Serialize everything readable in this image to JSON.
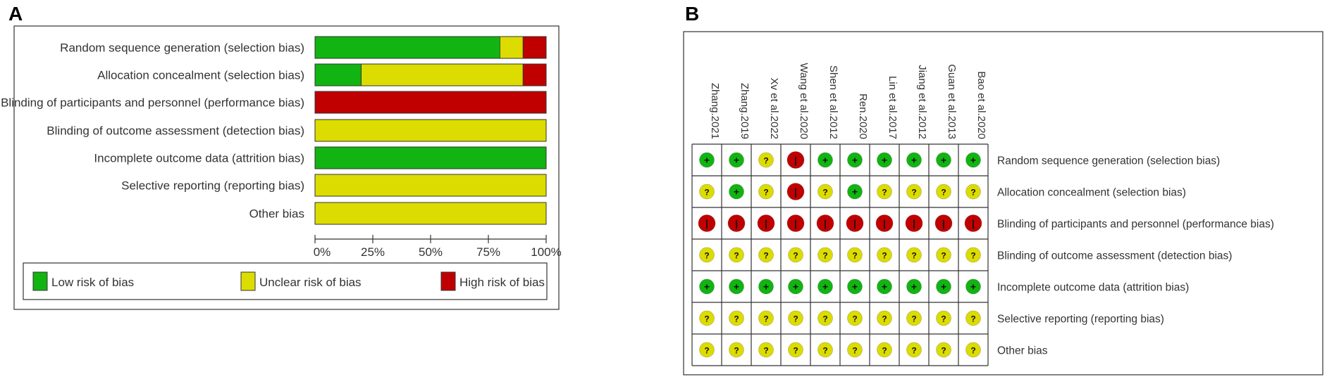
{
  "chart_data": [
    {
      "type": "bar",
      "subtype": "stacked-horizontal-percent",
      "panel": "A",
      "domains": [
        "Random sequence generation (selection bias)",
        "Allocation concealment (selection bias)",
        "Blinding of participants and personnel (performance bias)",
        "Blinding of outcome assessment (detection bias)",
        "Incomplete outcome data (attrition bias)",
        "Selective reporting (reporting bias)",
        "Other bias"
      ],
      "series": [
        {
          "key": "low",
          "name": "Low risk of bias",
          "values": [
            80,
            20,
            0,
            0,
            100,
            0,
            0
          ]
        },
        {
          "key": "unclear",
          "name": "Unclear risk of bias",
          "values": [
            10,
            70,
            0,
            100,
            0,
            100,
            100
          ]
        },
        {
          "key": "high",
          "name": "High risk of bias",
          "values": [
            10,
            10,
            100,
            0,
            0,
            0,
            0
          ]
        }
      ],
      "x_ticks": [
        "0%",
        "25%",
        "50%",
        "75%",
        "100%"
      ],
      "xlim": [
        0,
        100
      ],
      "legend_position": "bottom"
    },
    {
      "type": "table",
      "subtype": "risk-of-bias-summary",
      "panel": "B",
      "studies": [
        "Zhang.2021",
        "Zhang.2019",
        "Xv et al.2022",
        "Wang et al.2020",
        "Shen et al.2012",
        "Ren.2020",
        "Lin et al.2017",
        "Jiang et al.2012",
        "Guan et al.2013",
        "Bao et al.2020"
      ],
      "domains": [
        "Random sequence generation (selection bias)",
        "Allocation concealment (selection bias)",
        "Blinding of participants and personnel (performance bias)",
        "Blinding of outcome assessment (detection bias)",
        "Incomplete outcome data (attrition bias)",
        "Selective reporting (reporting bias)",
        "Other bias"
      ],
      "judgements": [
        [
          "+",
          "+",
          "?",
          "-",
          "+",
          "+",
          "+",
          "+",
          "+",
          "+"
        ],
        [
          "?",
          "+",
          "?",
          "-",
          "?",
          "+",
          "?",
          "?",
          "?",
          "?"
        ],
        [
          "-",
          "-",
          "-",
          "-",
          "-",
          "-",
          "-",
          "-",
          "-",
          "-"
        ],
        [
          "?",
          "?",
          "?",
          "?",
          "?",
          "?",
          "?",
          "?",
          "?",
          "?"
        ],
        [
          "+",
          "+",
          "+",
          "+",
          "+",
          "+",
          "+",
          "+",
          "+",
          "+"
        ],
        [
          "?",
          "?",
          "?",
          "?",
          "?",
          "?",
          "?",
          "?",
          "?",
          "?"
        ],
        [
          "?",
          "?",
          "?",
          "?",
          "?",
          "?",
          "?",
          "?",
          "?",
          "?"
        ]
      ]
    }
  ],
  "panels": {
    "a_label": "A",
    "b_label": "B"
  },
  "colors": {
    "low": "#12b412",
    "unclear": "#dcdc00",
    "high": "#c00000"
  }
}
